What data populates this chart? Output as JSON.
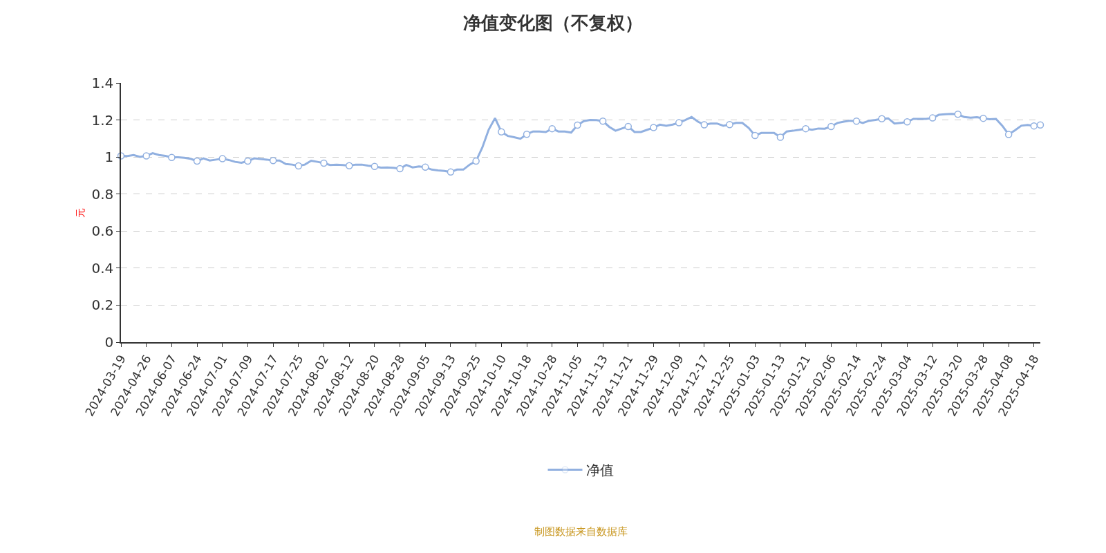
{
  "chart_data": {
    "type": "line",
    "title": "净值变化图（不复权）",
    "ylabel": "元",
    "categories": [
      "2024-03-19",
      null,
      null,
      null,
      "2024-04-26",
      null,
      null,
      null,
      "2024-06-07",
      null,
      null,
      null,
      "2024-06-24",
      null,
      null,
      null,
      "2024-07-01",
      null,
      null,
      null,
      "2024-07-09",
      null,
      null,
      null,
      "2024-07-17",
      null,
      null,
      null,
      "2024-07-25",
      null,
      null,
      null,
      "2024-08-02",
      null,
      null,
      null,
      "2024-08-12",
      null,
      null,
      null,
      "2024-08-20",
      null,
      null,
      null,
      "2024-08-28",
      null,
      null,
      null,
      "2024-09-05",
      null,
      null,
      null,
      "2024-09-13",
      null,
      null,
      null,
      "2024-09-25",
      null,
      null,
      null,
      "2024-10-10",
      null,
      null,
      null,
      "2024-10-18",
      null,
      null,
      null,
      "2024-10-28",
      null,
      null,
      null,
      "2024-11-05",
      null,
      null,
      null,
      "2024-11-13",
      null,
      null,
      null,
      "2024-11-21",
      null,
      null,
      null,
      "2024-11-29",
      null,
      null,
      null,
      "2024-12-09",
      null,
      null,
      null,
      "2024-12-17",
      null,
      null,
      null,
      "2024-12-25",
      null,
      null,
      null,
      "2025-01-03",
      null,
      null,
      null,
      "2025-01-13",
      null,
      null,
      null,
      "2025-01-21",
      null,
      null,
      null,
      "2025-02-06",
      null,
      null,
      null,
      "2025-02-14",
      null,
      null,
      null,
      "2025-02-24",
      null,
      null,
      null,
      "2025-03-04",
      null,
      null,
      null,
      "2025-03-12",
      null,
      null,
      null,
      "2025-03-20",
      null,
      null,
      null,
      "2025-03-28",
      null,
      null,
      null,
      "2025-04-08",
      null,
      null,
      null,
      "2025-04-18",
      null
    ],
    "series": [
      {
        "name": "净值",
        "color": "#91b0e0",
        "values": [
          1.006,
          1.005,
          1.011,
          1.001,
          1.006,
          1.021,
          1.011,
          1.006,
          0.998,
          0.999,
          0.996,
          0.99,
          0.978,
          0.993,
          0.981,
          0.986,
          0.991,
          0.984,
          0.974,
          0.969,
          0.978,
          0.993,
          0.989,
          0.986,
          0.981,
          0.981,
          0.962,
          0.959,
          0.952,
          0.959,
          0.98,
          0.974,
          0.967,
          0.957,
          0.959,
          0.957,
          0.953,
          0.959,
          0.959,
          0.953,
          0.949,
          0.943,
          0.944,
          0.942,
          0.937,
          0.957,
          0.944,
          0.949,
          0.945,
          0.932,
          0.928,
          0.925,
          0.919,
          0.932,
          0.932,
          0.959,
          0.978,
          1.052,
          1.148,
          1.21,
          1.136,
          1.114,
          1.107,
          1.099,
          1.123,
          1.138,
          1.138,
          1.135,
          1.153,
          1.138,
          1.138,
          1.132,
          1.172,
          1.194,
          1.2,
          1.199,
          1.194,
          1.163,
          1.142,
          1.154,
          1.165,
          1.135,
          1.135,
          1.147,
          1.159,
          1.175,
          1.169,
          1.175,
          1.185,
          1.2,
          1.216,
          1.191,
          1.174,
          1.181,
          1.181,
          1.169,
          1.175,
          1.184,
          1.184,
          1.157,
          1.116,
          1.13,
          1.13,
          1.13,
          1.107,
          1.138,
          1.142,
          1.147,
          1.153,
          1.147,
          1.154,
          1.153,
          1.165,
          1.184,
          1.191,
          1.196,
          1.194,
          1.184,
          1.196,
          1.2,
          1.207,
          1.209,
          1.181,
          1.184,
          1.19,
          1.206,
          1.206,
          1.206,
          1.211,
          1.228,
          1.231,
          1.233,
          1.231,
          1.216,
          1.212,
          1.215,
          1.209,
          1.204,
          1.206,
          1.169,
          1.122,
          1.144,
          1.169,
          1.173,
          1.168,
          1.173
        ]
      }
    ],
    "ylim": [
      0,
      1.4
    ],
    "yticks": [
      0,
      0.2,
      0.4,
      0.6,
      0.8,
      1,
      1.2,
      1.4
    ],
    "grid": "y",
    "legend": "bottom",
    "line_style": "solid",
    "annotations": [
      "制图数据来自数据库"
    ]
  }
}
